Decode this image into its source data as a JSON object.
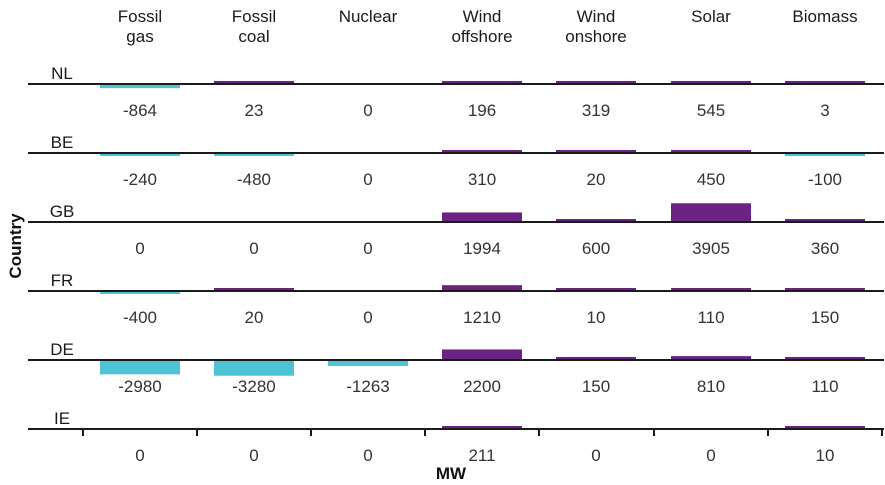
{
  "chart_data": {
    "type": "bar",
    "title": "",
    "xlabel": "MW",
    "ylabel": "Country",
    "categories": [
      "Fossil gas",
      "Fossil coal",
      "Nuclear",
      "Wind offshore",
      "Wind onshore",
      "Solar",
      "Biomass"
    ],
    "category_labels": [
      [
        "Fossil",
        "gas"
      ],
      [
        "Fossil",
        "coal"
      ],
      [
        "Nuclear"
      ],
      [
        "Wind",
        "offshore"
      ],
      [
        "Wind",
        "onshore"
      ],
      [
        "Solar"
      ],
      [
        "Biomass"
      ]
    ],
    "series": [
      {
        "name": "NL",
        "values": [
          -864,
          23,
          0,
          196,
          319,
          545,
          3
        ]
      },
      {
        "name": "BE",
        "values": [
          -240,
          -480,
          0,
          310,
          20,
          450,
          -100
        ]
      },
      {
        "name": "GB",
        "values": [
          0,
          0,
          0,
          1994,
          600,
          3905,
          360
        ]
      },
      {
        "name": "FR",
        "values": [
          -400,
          20,
          0,
          1210,
          10,
          110,
          150
        ]
      },
      {
        "name": "DE",
        "values": [
          -2980,
          -3280,
          -1263,
          2200,
          150,
          810,
          110
        ]
      },
      {
        "name": "IE",
        "values": [
          0,
          0,
          0,
          211,
          0,
          0,
          10
        ]
      }
    ],
    "colors": {
      "positive": "#6a2384",
      "negative": "#4ec3d6"
    }
  }
}
